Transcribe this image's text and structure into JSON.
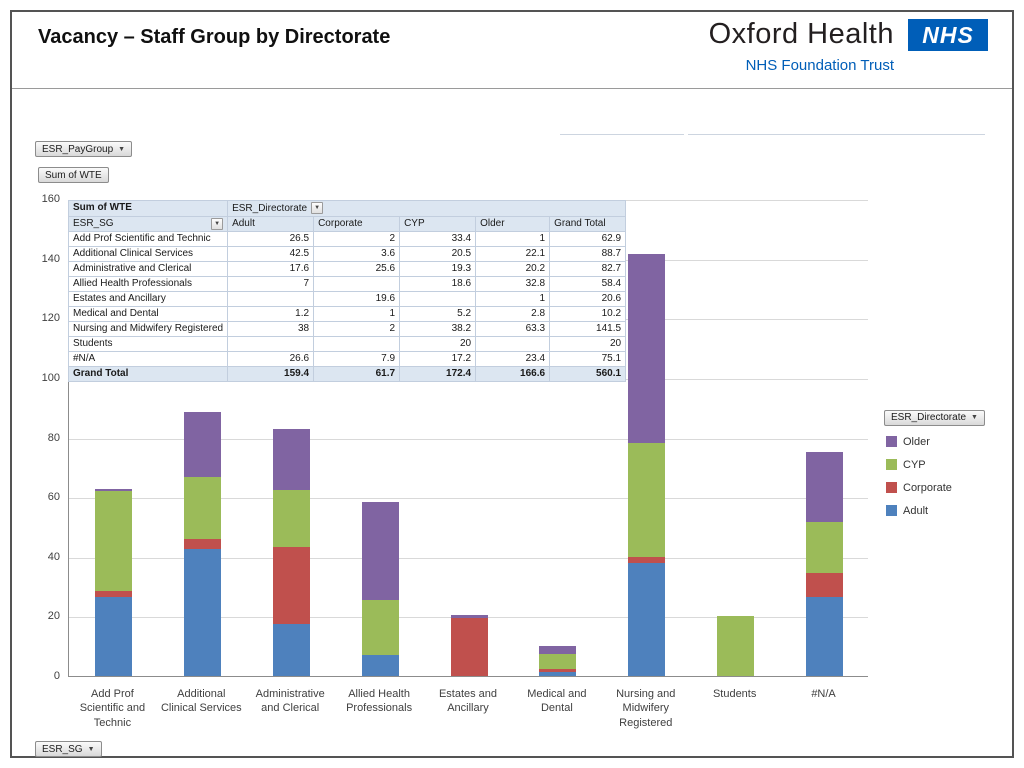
{
  "page": {
    "title": "Vacancy – Staff Group by Directorate"
  },
  "logo": {
    "org": "Oxford Health",
    "nhs": "NHS",
    "subtitle": "NHS Foundation Trust",
    "nhs_blue": "#005EB8"
  },
  "buttons": {
    "pay_group": "ESR_PayGroup",
    "sum_of_wte": "Sum of WTE",
    "esr_sg": "ESR_SG",
    "esr_directorate": "ESR_Directorate"
  },
  "pivot_table": {
    "corner": "Sum of WTE",
    "col_field": "ESR_Directorate",
    "row_field": "ESR_SG",
    "columns": [
      "Adult",
      "Corporate",
      "CYP",
      "Older",
      "Grand Total"
    ],
    "rows": [
      {
        "label": "Add Prof Scientific and Technic",
        "values": [
          "26.5",
          "2",
          "33.4",
          "1",
          "62.9"
        ]
      },
      {
        "label": "Additional Clinical Services",
        "values": [
          "42.5",
          "3.6",
          "20.5",
          "22.1",
          "88.7"
        ]
      },
      {
        "label": "Administrative and Clerical",
        "values": [
          "17.6",
          "25.6",
          "19.3",
          "20.2",
          "82.7"
        ]
      },
      {
        "label": "Allied Health Professionals",
        "values": [
          "7",
          "",
          "18.6",
          "32.8",
          "58.4"
        ]
      },
      {
        "label": "Estates and Ancillary",
        "values": [
          "",
          "19.6",
          "",
          "1",
          "20.6"
        ]
      },
      {
        "label": "Medical and Dental",
        "values": [
          "1.2",
          "1",
          "5.2",
          "2.8",
          "10.2"
        ]
      },
      {
        "label": "Nursing and Midwifery Registered",
        "values": [
          "38",
          "2",
          "38.2",
          "63.3",
          "141.5"
        ]
      },
      {
        "label": "Students",
        "values": [
          "",
          "",
          "20",
          "",
          "20"
        ]
      },
      {
        "label": "#N/A",
        "values": [
          "26.6",
          "7.9",
          "17.2",
          "23.4",
          "75.1"
        ]
      }
    ],
    "grand_total": {
      "label": "Grand Total",
      "values": [
        "159.4",
        "61.7",
        "172.4",
        "166.6",
        "560.1"
      ]
    }
  },
  "chart_data": {
    "type": "bar",
    "stacked": true,
    "title": "Vacancy – Staff Group by Directorate",
    "categories": [
      "Add Prof Scientific and Technic",
      "Additional Clinical Services",
      "Administrative and Clerical",
      "Allied Health Professionals",
      "Estates and Ancillary",
      "Medical and Dental",
      "Nursing and Midwifery Registered",
      "Students",
      "#N/A"
    ],
    "series": [
      {
        "name": "Adult",
        "color": "#4E81BD",
        "values": [
          26.5,
          42.5,
          17.6,
          7,
          0,
          1.2,
          38,
          0,
          26.6
        ]
      },
      {
        "name": "Corporate",
        "color": "#C0504D",
        "values": [
          2,
          3.6,
          25.6,
          0,
          19.6,
          1,
          2,
          0,
          7.9
        ]
      },
      {
        "name": "CYP",
        "color": "#9BBB59",
        "values": [
          33.4,
          20.5,
          19.3,
          18.6,
          0,
          5.2,
          38.2,
          20,
          17.2
        ]
      },
      {
        "name": "Older",
        "color": "#8064A2",
        "values": [
          1,
          22.1,
          20.2,
          32.8,
          1,
          2.8,
          63.3,
          0,
          23.4
        ]
      }
    ],
    "ylim": [
      0,
      160
    ],
    "ytick_step": 20,
    "grid": true,
    "legend_position": "right",
    "legend_order": [
      "Older",
      "CYP",
      "Corporate",
      "Adult"
    ]
  }
}
